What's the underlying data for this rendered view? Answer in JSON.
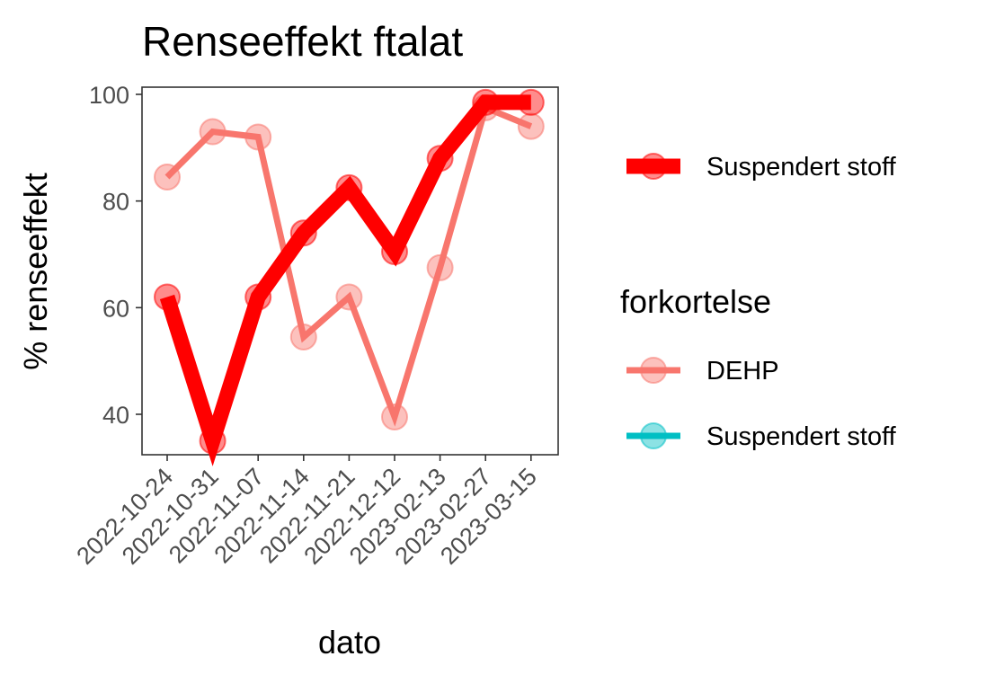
{
  "chart_data": {
    "type": "line",
    "title": "Renseeffekt ftalat",
    "xlabel": "dato",
    "ylabel": "% renseeffekt",
    "categories": [
      "2022-10-24",
      "2022-10-31",
      "2022-11-07",
      "2022-11-14",
      "2022-11-21",
      "2022-12-12",
      "2023-02-13",
      "2023-02-27",
      "2023-03-15"
    ],
    "yticks": [
      40,
      60,
      80,
      100
    ],
    "ylim": [
      33,
      101
    ],
    "grid": false,
    "legend_position": "right",
    "series": [
      {
        "name": "Suspendert stoff",
        "color": "#ff0000",
        "style": "thick",
        "values": [
          62,
          35,
          62,
          74,
          82.5,
          70.5,
          88,
          98.5,
          98.5
        ]
      },
      {
        "name": "DEHP",
        "color": "#f8766d",
        "style": "thin",
        "values": [
          84.5,
          93,
          92,
          54.5,
          62,
          39.5,
          67.5,
          97.5,
          94
        ]
      }
    ],
    "legend": {
      "top_entry": {
        "label": "Suspendert stoff",
        "color": "#ff0000"
      },
      "title": "forkortelse",
      "entries": [
        {
          "label": "DEHP",
          "color": "#f8766d"
        },
        {
          "label": "Suspendert stoff",
          "color": "#00bfc4"
        }
      ]
    }
  }
}
